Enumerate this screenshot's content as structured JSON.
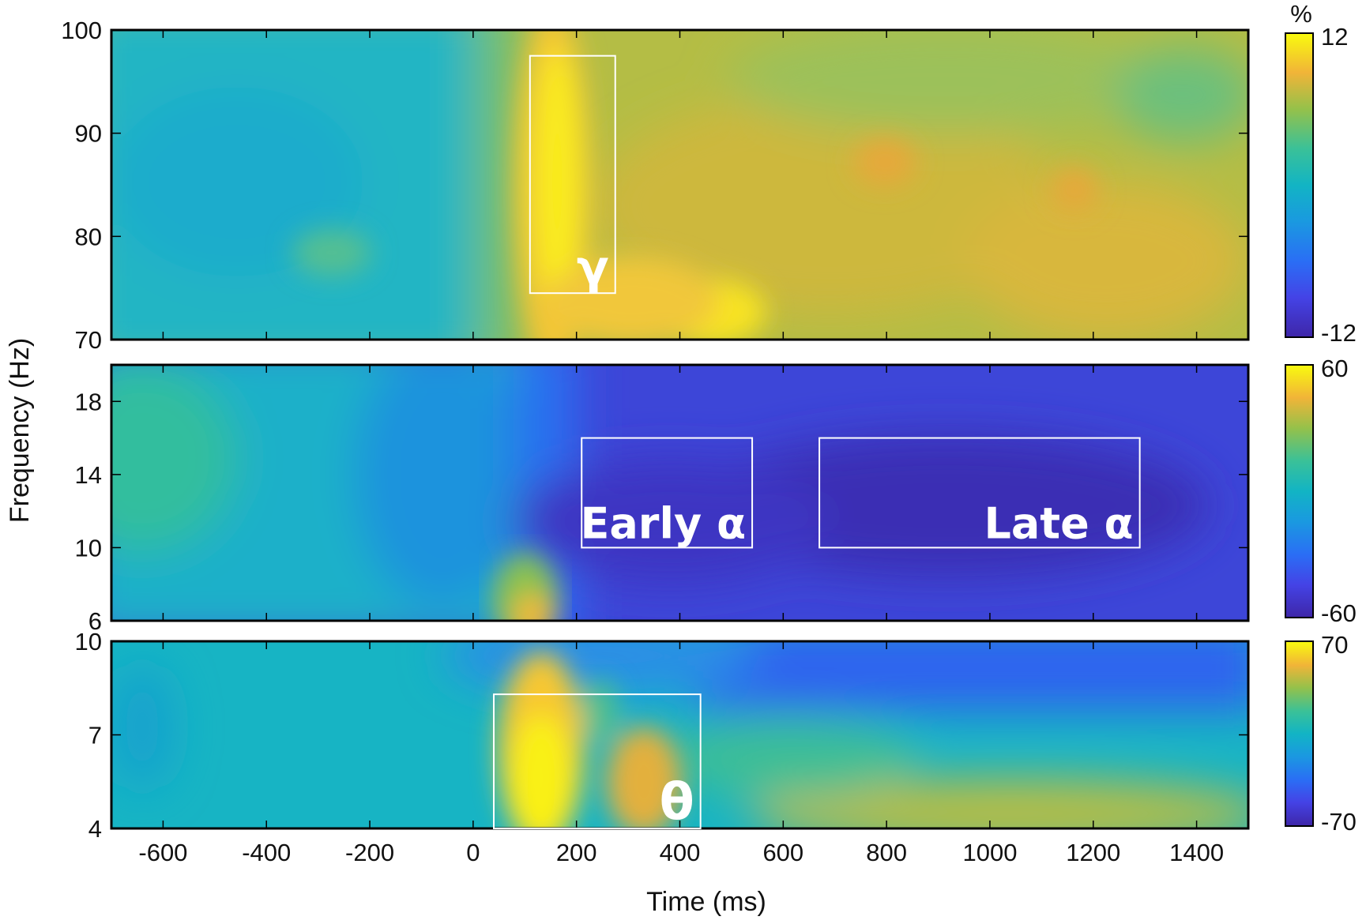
{
  "chart_data": {
    "type": "heatmap",
    "xlabel": "Time (ms)",
    "ylabel": "Frequency (Hz)",
    "xlim": [
      -700,
      1500
    ],
    "xticks": [
      -600,
      -400,
      -200,
      0,
      200,
      400,
      600,
      800,
      1000,
      1200,
      1400
    ],
    "colormap": "parula",
    "colorbar_unit": "%",
    "panels": [
      {
        "band": "gamma",
        "ylim": [
          70,
          100
        ],
        "yticks": [
          70,
          80,
          90,
          100
        ],
        "clim": [
          -12,
          12
        ],
        "colorbar_ticks": [
          -12,
          12
        ],
        "boxes": [
          {
            "label": "γ",
            "t_start": 110,
            "t_end": 275,
            "f_low": 74.5,
            "f_high": 97.5
          }
        ]
      },
      {
        "band": "alpha",
        "ylim": [
          6,
          20
        ],
        "yticks": [
          6,
          10,
          14,
          18
        ],
        "clim": [
          -60,
          60
        ],
        "colorbar_ticks": [
          -60,
          60
        ],
        "boxes": [
          {
            "label": "Early α",
            "t_start": 210,
            "t_end": 540,
            "f_low": 10,
            "f_high": 16
          },
          {
            "label": "Late α",
            "t_start": 670,
            "t_end": 1290,
            "f_low": 10,
            "f_high": 16
          }
        ]
      },
      {
        "band": "theta",
        "ylim": [
          4,
          10
        ],
        "yticks": [
          4,
          7,
          10
        ],
        "clim": [
          -70,
          70
        ],
        "colorbar_ticks": [
          -70,
          70
        ],
        "boxes": [
          {
            "label": "θ",
            "t_start": 40,
            "t_end": 440,
            "f_low": 4,
            "f_high": 8.3
          }
        ]
      }
    ]
  }
}
